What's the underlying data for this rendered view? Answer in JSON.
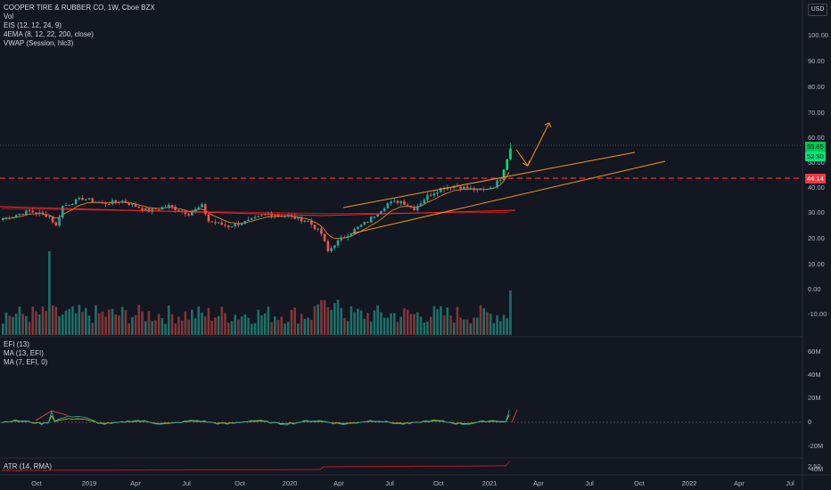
{
  "title": "COOPER TIRE & RUBBER CO, 1W, Cboe BZX",
  "main_indicators": [
    "Vol",
    "EIS (12, 12, 24, 9)",
    "4EMA (8, 12, 22, 200, close)",
    "VWAP (Session, hlc3)"
  ],
  "efi_indicators": [
    "EFI (13)",
    "MA (13, EFI)",
    "MA (7, EFI, 0)"
  ],
  "atr_indicator": "ATR (14, RMA)",
  "currency": "USD",
  "price_axis": [
    "100.00",
    "90.00",
    "80.00",
    "70.00",
    "60.00",
    "50.00",
    "40.00",
    "30.00",
    "20.00",
    "10.00",
    "0.00",
    "-10.00"
  ],
  "efi_axis": [
    "60M",
    "40M",
    "20M",
    "0",
    "-20M",
    "-40M"
  ],
  "atr_axis": [
    "2.50"
  ],
  "price_tags": {
    "current": "55.65",
    "second": "52.50",
    "level": "44.14"
  },
  "time_axis": [
    "Oct",
    "2019",
    "Apr",
    "Jul",
    "Oct",
    "2020",
    "Apr",
    "Jul",
    "Oct",
    "2021",
    "Apr",
    "Jul",
    "Oct",
    "2022",
    "Apr",
    "Jul"
  ],
  "colors": {
    "background": "#131722",
    "up": "#26a69a",
    "down": "#ef5350",
    "bright_up": "#00e676",
    "trendline": "#f7931a",
    "level": "#ff2a2a",
    "vwap": "#b71c1c",
    "efi": "#26a69a",
    "ema": "#f7931a"
  }
}
